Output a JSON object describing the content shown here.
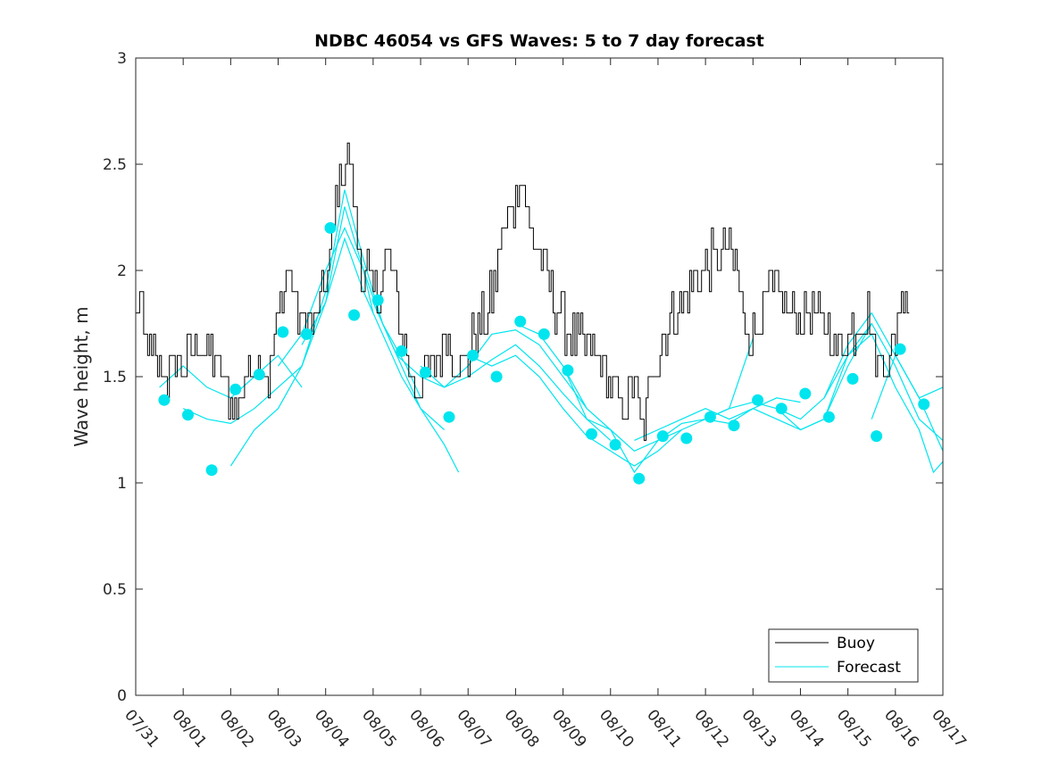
{
  "chart_data": {
    "type": "line",
    "title": "NDBC 46054 vs GFS Waves: 5 to 7 day forecast",
    "xlabel": "",
    "ylabel": "Wave height, m",
    "xlim": [
      0,
      17
    ],
    "ylim": [
      0,
      3
    ],
    "x_tick_labels": [
      "07/31",
      "08/01",
      "08/02",
      "08/03",
      "08/04",
      "08/05",
      "08/06",
      "08/07",
      "08/08",
      "08/09",
      "08/10",
      "08/11",
      "08/12",
      "08/13",
      "08/14",
      "08/15",
      "08/16",
      "08/17"
    ],
    "y_ticks": [
      0,
      0.5,
      1,
      1.5,
      2,
      2.5,
      3
    ],
    "y_tick_labels": [
      "0",
      "0.5",
      "1",
      "1.5",
      "2",
      "2.5",
      "3"
    ],
    "legend": {
      "position": "bottom-right",
      "entries": [
        "Buoy",
        "Forecast"
      ]
    },
    "colors": {
      "buoy": "#000000",
      "forecast": "#00e5ee"
    },
    "buoy_anchors": [
      [
        0.0,
        1.8
      ],
      [
        0.1,
        1.9
      ],
      [
        0.15,
        1.7
      ],
      [
        0.3,
        1.6
      ],
      [
        0.5,
        1.55
      ],
      [
        0.7,
        1.5
      ],
      [
        0.9,
        1.6
      ],
      [
        1.0,
        1.55
      ],
      [
        1.2,
        1.6
      ],
      [
        1.4,
        1.65
      ],
      [
        1.6,
        1.6
      ],
      [
        1.8,
        1.5
      ],
      [
        2.0,
        1.4
      ],
      [
        2.1,
        1.3
      ],
      [
        2.3,
        1.5
      ],
      [
        2.5,
        1.6
      ],
      [
        2.7,
        1.55
      ],
      [
        2.8,
        1.5
      ],
      [
        2.9,
        1.7
      ],
      [
        3.0,
        1.8
      ],
      [
        3.1,
        1.9
      ],
      [
        3.2,
        2.0
      ],
      [
        3.3,
        1.9
      ],
      [
        3.4,
        1.8
      ],
      [
        3.5,
        1.75
      ],
      [
        3.6,
        1.8
      ],
      [
        3.7,
        1.7
      ],
      [
        3.8,
        1.8
      ],
      [
        3.9,
        1.9
      ],
      [
        4.0,
        1.95
      ],
      [
        4.1,
        2.1
      ],
      [
        4.2,
        2.3
      ],
      [
        4.3,
        2.45
      ],
      [
        4.4,
        2.5
      ],
      [
        4.5,
        2.5
      ],
      [
        4.6,
        2.3
      ],
      [
        4.7,
        2.1
      ],
      [
        4.8,
        1.95
      ],
      [
        4.9,
        2.0
      ],
      [
        5.0,
        1.85
      ],
      [
        5.1,
        1.9
      ],
      [
        5.3,
        2.1
      ],
      [
        5.5,
        1.85
      ],
      [
        5.6,
        1.7
      ],
      [
        5.7,
        1.6
      ],
      [
        5.8,
        1.5
      ],
      [
        5.9,
        1.45
      ],
      [
        6.0,
        1.5
      ],
      [
        6.2,
        1.55
      ],
      [
        6.4,
        1.6
      ],
      [
        6.5,
        1.7
      ],
      [
        6.6,
        1.65
      ],
      [
        6.8,
        1.55
      ],
      [
        7.0,
        1.6
      ],
      [
        7.2,
        1.75
      ],
      [
        7.4,
        1.8
      ],
      [
        7.5,
        1.9
      ],
      [
        7.6,
        2.0
      ],
      [
        7.7,
        2.15
      ],
      [
        7.8,
        2.2
      ],
      [
        7.9,
        2.3
      ],
      [
        8.0,
        2.35
      ],
      [
        8.1,
        2.45
      ],
      [
        8.2,
        2.35
      ],
      [
        8.3,
        2.2
      ],
      [
        8.5,
        2.1
      ],
      [
        8.6,
        2.0
      ],
      [
        8.8,
        1.85
      ],
      [
        9.0,
        1.75
      ],
      [
        9.2,
        1.7
      ],
      [
        9.4,
        1.65
      ],
      [
        9.6,
        1.6
      ],
      [
        9.8,
        1.55
      ],
      [
        10.0,
        1.45
      ],
      [
        10.2,
        1.35
      ],
      [
        10.4,
        1.4
      ],
      [
        10.5,
        1.5
      ],
      [
        10.6,
        1.3
      ],
      [
        10.7,
        1.25
      ],
      [
        10.8,
        1.4
      ],
      [
        10.9,
        1.55
      ],
      [
        11.0,
        1.6
      ],
      [
        11.1,
        1.7
      ],
      [
        11.3,
        1.8
      ],
      [
        11.5,
        1.85
      ],
      [
        11.7,
        1.9
      ],
      [
        11.9,
        2.0
      ],
      [
        12.0,
        2.05
      ],
      [
        12.2,
        2.05
      ],
      [
        12.4,
        2.1
      ],
      [
        12.6,
        2.05
      ],
      [
        12.7,
        1.9
      ],
      [
        12.8,
        1.75
      ],
      [
        13.0,
        1.7
      ],
      [
        13.2,
        1.8
      ],
      [
        13.4,
        1.9
      ],
      [
        13.6,
        1.85
      ],
      [
        13.8,
        1.8
      ],
      [
        14.0,
        1.75
      ],
      [
        14.2,
        1.8
      ],
      [
        14.4,
        1.75
      ],
      [
        14.6,
        1.7
      ],
      [
        14.8,
        1.65
      ],
      [
        15.0,
        1.7
      ],
      [
        15.2,
        1.75
      ],
      [
        15.4,
        1.8
      ],
      [
        15.6,
        1.6
      ],
      [
        15.8,
        1.55
      ],
      [
        16.0,
        1.7
      ],
      [
        16.1,
        1.85
      ],
      [
        16.2,
        1.95
      ],
      [
        16.3,
        1.8
      ]
    ],
    "forecast_series": [
      [
        [
          0.5,
          1.45
        ],
        [
          1.0,
          1.55
        ],
        [
          1.5,
          1.45
        ],
        [
          2.0,
          1.4
        ],
        [
          2.5,
          1.5
        ],
        [
          3.0,
          1.6
        ],
        [
          3.5,
          1.45
        ]
      ],
      [
        [
          1.0,
          1.35
        ],
        [
          1.5,
          1.3
        ],
        [
          2.0,
          1.28
        ],
        [
          2.5,
          1.35
        ],
        [
          3.0,
          1.45
        ],
        [
          3.5,
          1.55
        ],
        [
          4.0,
          1.85
        ],
        [
          4.4,
          2.3
        ],
        [
          4.8,
          2.0
        ],
        [
          5.0,
          1.8
        ]
      ],
      [
        [
          2.0,
          1.08
        ],
        [
          2.5,
          1.25
        ],
        [
          3.0,
          1.35
        ],
        [
          3.5,
          1.55
        ],
        [
          4.0,
          1.9
        ],
        [
          4.4,
          2.38
        ],
        [
          4.8,
          2.05
        ],
        [
          5.2,
          1.75
        ],
        [
          5.7,
          1.55
        ],
        [
          6.0,
          1.4
        ]
      ],
      [
        [
          3.0,
          1.55
        ],
        [
          3.5,
          1.7
        ],
        [
          4.0,
          2.0
        ],
        [
          4.4,
          2.2
        ],
        [
          4.8,
          2.0
        ],
        [
          5.2,
          1.75
        ],
        [
          5.6,
          1.55
        ],
        [
          6.0,
          1.35
        ],
        [
          6.5,
          1.18
        ],
        [
          6.8,
          1.05
        ]
      ],
      [
        [
          3.5,
          1.65
        ],
        [
          4.0,
          1.85
        ],
        [
          4.4,
          2.15
        ],
        [
          4.8,
          1.9
        ],
        [
          5.2,
          1.7
        ],
        [
          5.6,
          1.5
        ],
        [
          6.0,
          1.35
        ],
        [
          6.5,
          1.25
        ]
      ],
      [
        [
          5.0,
          1.85
        ],
        [
          5.5,
          1.6
        ],
        [
          6.0,
          1.5
        ],
        [
          6.5,
          1.45
        ],
        [
          7.0,
          1.55
        ],
        [
          7.5,
          1.7
        ],
        [
          8.0,
          1.72
        ],
        [
          8.5,
          1.65
        ],
        [
          9.0,
          1.5
        ],
        [
          9.5,
          1.35
        ]
      ],
      [
        [
          6.0,
          1.55
        ],
        [
          6.5,
          1.45
        ],
        [
          7.0,
          1.5
        ],
        [
          7.5,
          1.58
        ],
        [
          8.0,
          1.65
        ],
        [
          8.5,
          1.55
        ],
        [
          9.0,
          1.42
        ],
        [
          9.5,
          1.3
        ],
        [
          10.0,
          1.2
        ]
      ],
      [
        [
          7.0,
          1.6
        ],
        [
          7.5,
          1.55
        ],
        [
          8.0,
          1.6
        ],
        [
          8.5,
          1.5
        ],
        [
          9.0,
          1.35
        ],
        [
          9.5,
          1.22
        ],
        [
          10.0,
          1.15
        ],
        [
          10.5,
          1.08
        ],
        [
          11.0,
          1.15
        ],
        [
          11.5,
          1.25
        ]
      ],
      [
        [
          8.0,
          1.75
        ],
        [
          8.5,
          1.7
        ],
        [
          9.0,
          1.55
        ],
        [
          9.5,
          1.35
        ],
        [
          10.0,
          1.25
        ],
        [
          10.5,
          1.15
        ],
        [
          11.0,
          1.2
        ],
        [
          11.5,
          1.28
        ],
        [
          12.0,
          1.3
        ],
        [
          12.5,
          1.35
        ],
        [
          13.0,
          1.68
        ]
      ],
      [
        [
          9.0,
          1.55
        ],
        [
          9.5,
          1.3
        ],
        [
          10.0,
          1.25
        ],
        [
          10.5,
          1.05
        ],
        [
          11.0,
          1.2
        ],
        [
          11.5,
          1.25
        ],
        [
          12.0,
          1.3
        ],
        [
          12.5,
          1.28
        ],
        [
          13.0,
          1.35
        ],
        [
          13.5,
          1.4
        ],
        [
          14.0,
          1.38
        ]
      ],
      [
        [
          10.5,
          1.2
        ],
        [
          11.0,
          1.25
        ],
        [
          11.5,
          1.3
        ],
        [
          12.0,
          1.35
        ],
        [
          12.5,
          1.3
        ],
        [
          13.0,
          1.35
        ],
        [
          13.5,
          1.3
        ],
        [
          14.0,
          1.25
        ],
        [
          14.5,
          1.3
        ],
        [
          15.0,
          1.6
        ],
        [
          15.5,
          1.75
        ]
      ],
      [
        [
          12.0,
          1.3
        ],
        [
          12.5,
          1.35
        ],
        [
          13.0,
          1.38
        ],
        [
          13.5,
          1.35
        ],
        [
          14.0,
          1.3
        ],
        [
          14.5,
          1.4
        ],
        [
          15.0,
          1.65
        ],
        [
          15.5,
          1.8
        ],
        [
          16.0,
          1.6
        ],
        [
          16.5,
          1.4
        ],
        [
          17.0,
          1.15
        ]
      ],
      [
        [
          13.5,
          1.35
        ],
        [
          14.0,
          1.25
        ],
        [
          14.5,
          1.3
        ],
        [
          15.0,
          1.55
        ],
        [
          15.5,
          1.75
        ],
        [
          16.0,
          1.55
        ],
        [
          16.5,
          1.3
        ],
        [
          17.0,
          1.2
        ]
      ],
      [
        [
          14.5,
          1.4
        ],
        [
          15.0,
          1.6
        ],
        [
          15.5,
          1.7
        ],
        [
          16.0,
          1.45
        ],
        [
          16.5,
          1.25
        ],
        [
          16.8,
          1.05
        ],
        [
          17.0,
          1.1
        ]
      ],
      [
        [
          15.5,
          1.3
        ],
        [
          16.0,
          1.6
        ],
        [
          16.5,
          1.4
        ],
        [
          17.0,
          1.45
        ]
      ]
    ],
    "forecast_points": [
      [
        0.6,
        1.39
      ],
      [
        1.1,
        1.32
      ],
      [
        1.6,
        1.06
      ],
      [
        2.1,
        1.44
      ],
      [
        2.6,
        1.51
      ],
      [
        3.1,
        1.71
      ],
      [
        3.6,
        1.7
      ],
      [
        4.1,
        2.2
      ],
      [
        4.6,
        1.79
      ],
      [
        5.1,
        1.86
      ],
      [
        5.6,
        1.62
      ],
      [
        6.1,
        1.52
      ],
      [
        6.6,
        1.31
      ],
      [
        7.1,
        1.6
      ],
      [
        7.6,
        1.5
      ],
      [
        8.1,
        1.76
      ],
      [
        8.6,
        1.7
      ],
      [
        9.1,
        1.53
      ],
      [
        9.6,
        1.23
      ],
      [
        10.1,
        1.18
      ],
      [
        10.6,
        1.02
      ],
      [
        11.1,
        1.22
      ],
      [
        11.6,
        1.21
      ],
      [
        12.1,
        1.31
      ],
      [
        12.6,
        1.27
      ],
      [
        13.1,
        1.39
      ],
      [
        13.6,
        1.35
      ],
      [
        14.1,
        1.42
      ],
      [
        14.6,
        1.31
      ],
      [
        15.1,
        1.49
      ],
      [
        15.6,
        1.22
      ],
      [
        16.1,
        1.63
      ],
      [
        16.6,
        1.37
      ]
    ]
  }
}
